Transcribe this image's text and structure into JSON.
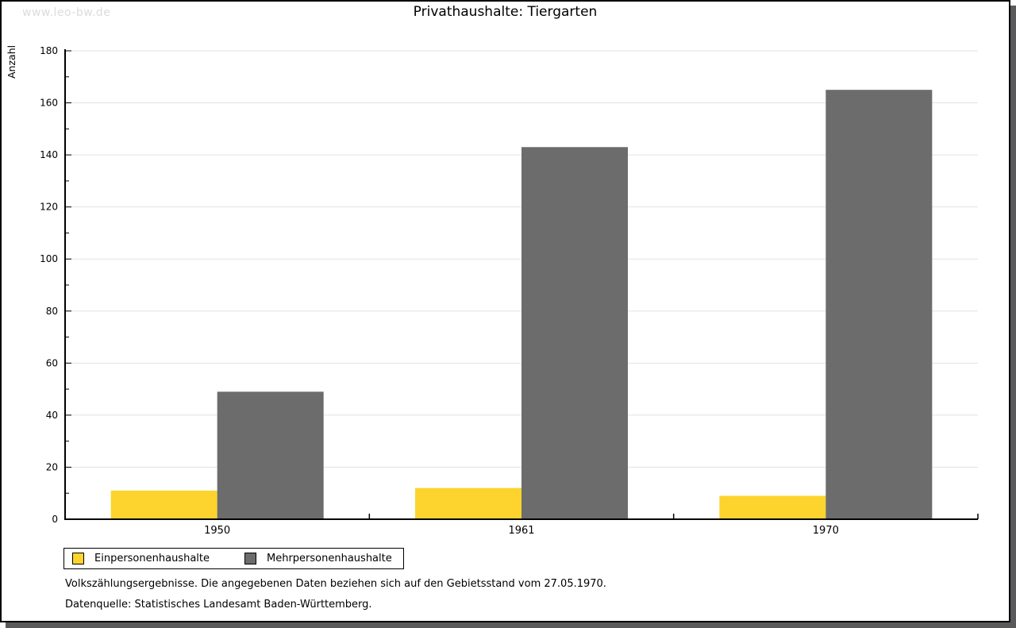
{
  "watermark": "www.leo-bw.de",
  "title": "Privathaushalte: Tiergarten",
  "chart_data": {
    "type": "bar",
    "title": "Privathaushalte: Tiergarten",
    "xlabel": "",
    "ylabel": "Anzahl",
    "categories": [
      "1950",
      "1961",
      "1970"
    ],
    "series": [
      {
        "name": "Einpersonenhaushalte",
        "color": "#FCD42D",
        "values": [
          11,
          12,
          9
        ]
      },
      {
        "name": "Mehrpersonenhaushalte",
        "color": "#6C6C6C",
        "values": [
          49,
          143,
          165
        ]
      }
    ],
    "ylim": [
      0,
      180
    ],
    "ytick_step": 20,
    "yminor_step": 10,
    "grid": true,
    "legend_position": "bottom-left"
  },
  "footnotes": {
    "line1": "Volkszählungsergebnisse. Die angegebenen Daten beziehen sich auf den Gebietsstand vom 27.05.1970.",
    "line2": "Datenquelle: Statistisches Landesamt Baden-Württemberg."
  },
  "colors": {
    "background": "#FFFFFF",
    "axis": "#000000",
    "gridline": "#E2E2E2",
    "watermark": "#DCDCDC",
    "shadow": "#5A5A5C",
    "bar_yellow": "#FCD42D",
    "bar_gray": "#6C6C6C"
  }
}
